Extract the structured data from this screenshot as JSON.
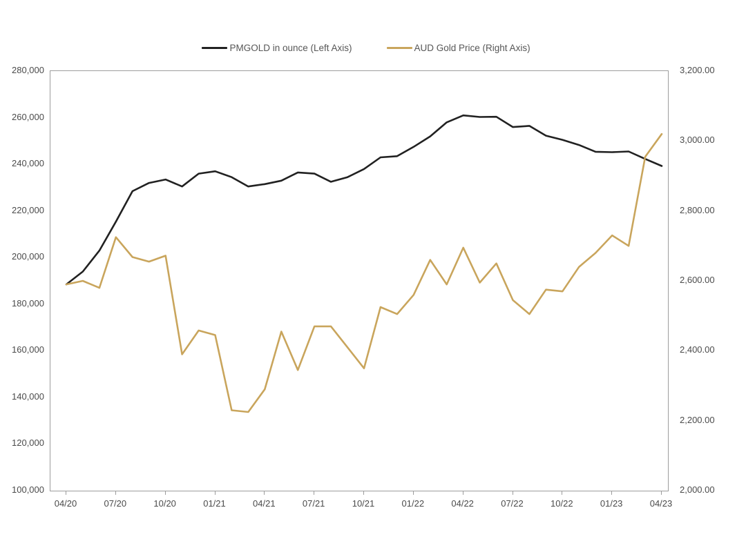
{
  "legend": {
    "items": [
      {
        "label": "PMGOLD in ounce (Left Axis)"
      },
      {
        "label": "AUD Gold Price (Right Axis)"
      }
    ]
  },
  "colors": {
    "pmgold_line": "#212121",
    "aud_gold_line": "#c9a55c",
    "plot_border": "#9c9c9c",
    "axis_text": "#4a4a4a",
    "legend_text": "#565656",
    "background": "#ffffff"
  },
  "chart_data": {
    "type": "line",
    "title": "",
    "grid": false,
    "legend_position": "top-center",
    "x": [
      "04/20",
      "05/20",
      "06/20",
      "07/20",
      "08/20",
      "09/20",
      "10/20",
      "11/20",
      "12/20",
      "01/21",
      "02/21",
      "03/21",
      "04/21",
      "05/21",
      "06/21",
      "07/21",
      "08/21",
      "09/21",
      "10/21",
      "11/21",
      "12/21",
      "01/22",
      "02/22",
      "03/22",
      "04/22",
      "05/22",
      "06/22",
      "07/22",
      "08/22",
      "09/22",
      "10/22",
      "11/22",
      "12/22",
      "01/23",
      "02/23",
      "03/23",
      "04/23"
    ],
    "series": [
      {
        "name": "PMGOLD in ounce (Left Axis)",
        "axis": "left",
        "color": "#212121",
        "values": [
          188500,
          194000,
          203000,
          215400,
          228500,
          232000,
          233500,
          230500,
          236000,
          237000,
          234500,
          230500,
          231500,
          233000,
          236500,
          236000,
          232500,
          234500,
          238000,
          243000,
          243500,
          247500,
          252000,
          258000,
          261000,
          260300,
          260400,
          256000,
          256500,
          252300,
          250500,
          248300,
          245400,
          245200,
          245500,
          242300,
          239300
        ]
      },
      {
        "name": "AUD Gold Price (Right Axis)",
        "axis": "right",
        "color": "#c9a55c",
        "values": [
          2590,
          2600,
          2580,
          2725,
          2668,
          2655,
          2672,
          2390,
          2458,
          2445,
          2230,
          2225,
          2290,
          2455,
          2345,
          2470,
          2470,
          2410,
          2350,
          2525,
          2505,
          2560,
          2660,
          2590,
          2695,
          2595,
          2650,
          2545,
          2505,
          2575,
          2570,
          2640,
          2680,
          2730,
          2700,
          2955,
          3020
        ]
      }
    ],
    "left_axis": {
      "min": 100000,
      "max": 280000,
      "step": 20000,
      "tick_labels": [
        "280,000",
        "260,000",
        "240,000",
        "220,000",
        "200,000",
        "180,000",
        "160,000",
        "140,000",
        "120,000",
        "100,000"
      ]
    },
    "right_axis": {
      "min": 2000,
      "max": 3200,
      "step": 200,
      "tick_labels": [
        "3,200.00",
        "3,000.00",
        "2,800.00",
        "2,600.00",
        "2,400.00",
        "2,200.00",
        "2,000.00"
      ]
    },
    "x_axis": {
      "label_every": 3,
      "tick_labels": [
        "04/20",
        "07/20",
        "10/20",
        "01/21",
        "04/21",
        "07/21",
        "10/21",
        "01/22",
        "04/22",
        "07/22",
        "10/22",
        "01/23",
        "04/23"
      ]
    }
  }
}
